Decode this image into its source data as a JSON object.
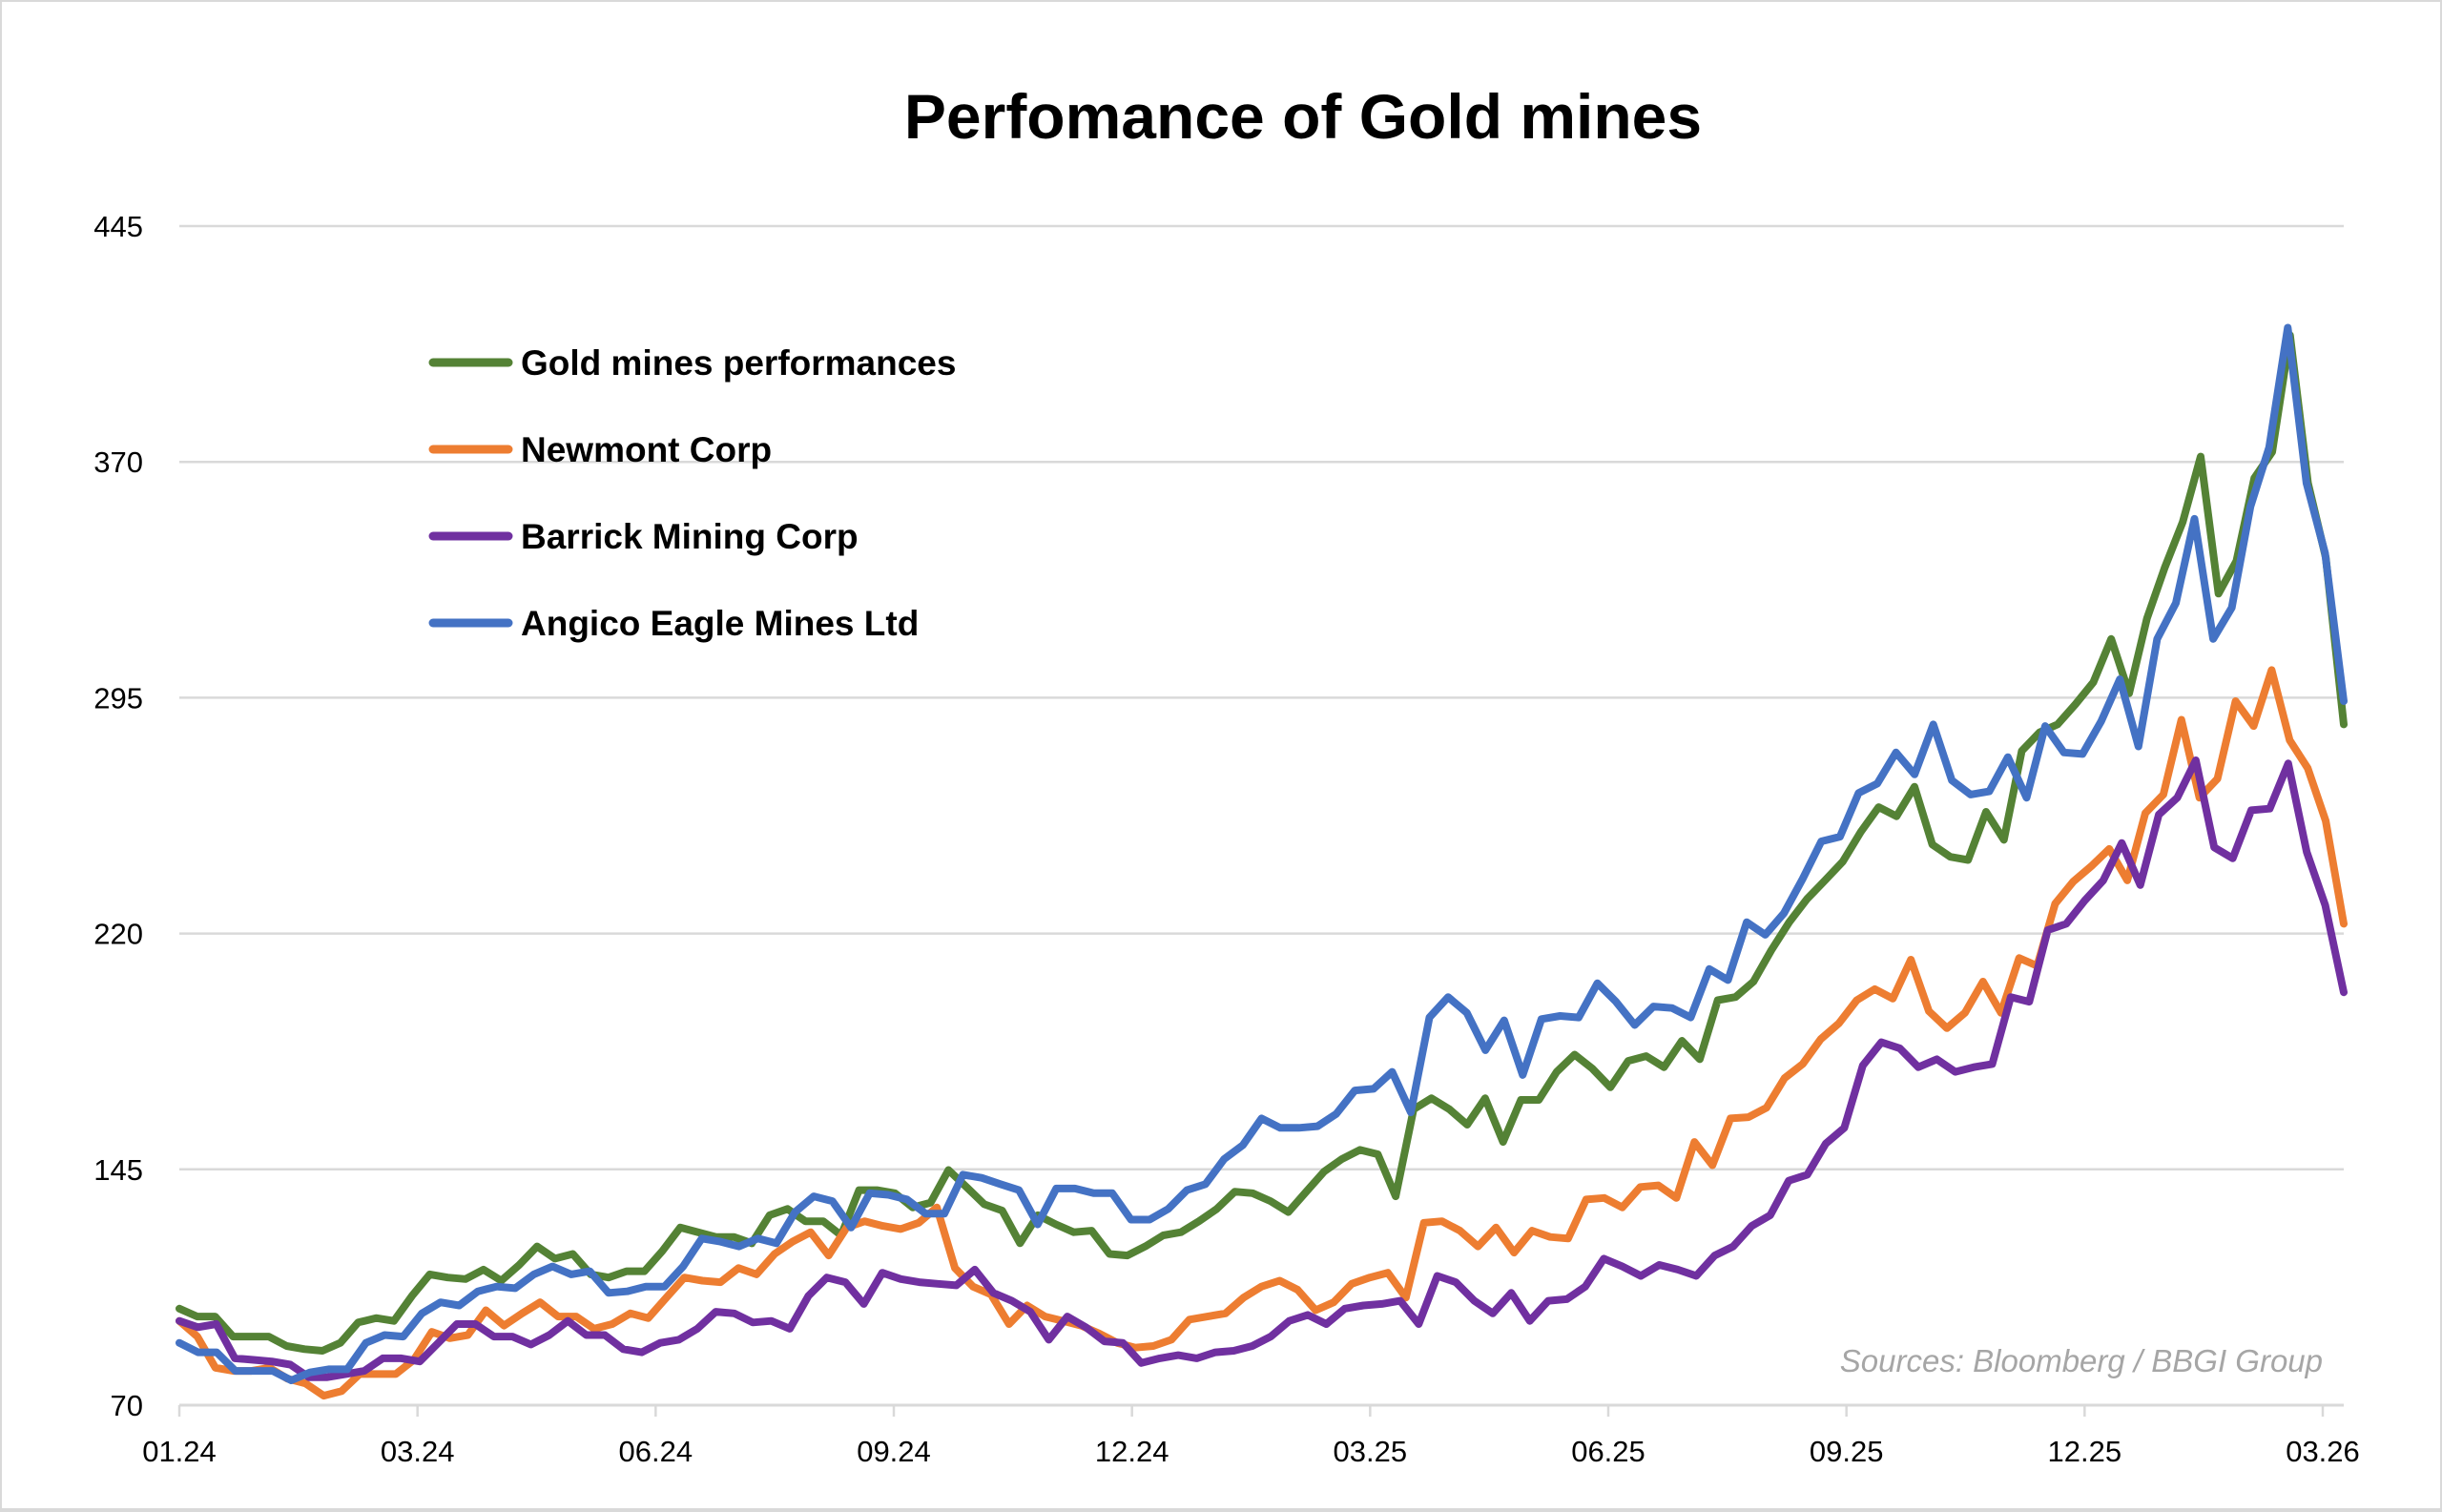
{
  "chart_data": {
    "type": "line",
    "title": "Perfomance of Gold mines",
    "xlabel": "",
    "ylabel": "",
    "ylim": [
      70,
      445
    ],
    "yticks": [
      "445",
      "370",
      "295",
      "220",
      "145",
      "70"
    ],
    "ytick_values": [
      445,
      370,
      295,
      220,
      145,
      70
    ],
    "xticks": [
      "01.24",
      "03.24",
      "06.24",
      "09.24",
      "12.24",
      "03.25",
      "06.25",
      "09.25",
      "12.25",
      "03.26"
    ],
    "grid": "horizontal",
    "legend_position": "top-left",
    "source": "Sources: Bloomberg / BBGI Group",
    "series": [
      {
        "name": "Gold mines performances",
        "color": "#548235",
        "values": [
          100.7,
          98.2,
          98.2,
          91.8,
          91.8,
          91.8,
          88.8,
          87.8,
          87.3,
          89.8,
          96.3,
          97.7,
          96.8,
          104.7,
          111.6,
          110.6,
          110.1,
          113.1,
          109.6,
          114.6,
          120.5,
          116.6,
          118.1,
          111.6,
          110.6,
          112.6,
          112.6,
          119.0,
          126.5,
          125.0,
          123.5,
          123.5,
          121.5,
          130.4,
          132.4,
          128.5,
          128.5,
          124.0,
          138.4,
          138.4,
          137.4,
          132.9,
          134.4,
          144.8,
          139.4,
          133.9,
          131.9,
          121.5,
          130.4,
          127.5,
          125.0,
          125.5,
          118.1,
          117.6,
          120.5,
          124.0,
          125.0,
          128.5,
          132.4,
          137.9,
          137.4,
          134.9,
          131.4,
          137.9,
          144.3,
          148.3,
          151.2,
          149.8,
          136.4,
          164.1,
          167.6,
          164.1,
          159.2,
          167.6,
          153.7,
          167.1,
          167.1,
          176.0,
          181.5,
          177.0,
          171.1,
          179.5,
          181.0,
          177.5,
          185.9,
          180.0,
          198.8,
          199.8,
          204.7,
          214.7,
          223.6,
          231.0,
          236.9,
          242.9,
          252.3,
          260.2,
          257.3,
          266.7,
          248.3,
          244.4,
          243.4,
          258.7,
          249.8,
          278.1,
          284.0,
          286.5,
          292.9,
          299.9,
          313.7,
          296.4,
          320.2,
          336.5,
          350.9,
          371.7,
          328.1,
          338.5,
          364.8,
          373.2,
          410.3,
          363.3,
          339.5,
          286.5
        ]
      },
      {
        "name": "Newmont Corp",
        "color": "#ED7D31",
        "values": [
          96.8,
          91.8,
          81.9,
          80.9,
          80.9,
          81.9,
          78.4,
          76.9,
          73.0,
          74.5,
          79.9,
          79.9,
          79.9,
          84.4,
          93.3,
          91.3,
          92.3,
          100.2,
          95.3,
          99.2,
          102.7,
          98.2,
          98.2,
          94.3,
          95.8,
          99.2,
          97.7,
          104.2,
          110.6,
          109.6,
          109.1,
          113.6,
          111.6,
          118.1,
          122.0,
          125.0,
          117.6,
          126.5,
          128.5,
          127.0,
          126.0,
          128.0,
          132.9,
          113.6,
          107.7,
          105.2,
          95.8,
          101.7,
          98.2,
          96.8,
          95.3,
          92.8,
          89.8,
          88.3,
          88.8,
          90.8,
          97.2,
          98.2,
          99.2,
          104.2,
          107.7,
          109.6,
          106.7,
          100.2,
          102.7,
          108.6,
          110.6,
          112.1,
          104.2,
          128.0,
          128.5,
          125.5,
          120.5,
          126.5,
          118.5,
          125.5,
          123.5,
          123.0,
          135.4,
          135.9,
          132.9,
          139.4,
          139.9,
          135.9,
          153.7,
          146.3,
          161.2,
          161.6,
          164.6,
          174.0,
          178.5,
          186.4,
          191.4,
          198.8,
          202.3,
          199.3,
          211.7,
          195.3,
          189.9,
          194.8,
          204.7,
          194.8,
          212.2,
          209.7,
          229.5,
          236.5,
          241.4,
          246.9,
          236.9,
          258.3,
          264.2,
          288.0,
          263.2,
          269.2,
          293.9,
          286.0,
          303.8,
          281.5,
          272.6,
          255.8,
          223.1
        ]
      },
      {
        "name": "Barrick Mining Corp",
        "color": "#7030A0",
        "values": [
          96.8,
          94.8,
          95.8,
          84.9,
          84.4,
          83.9,
          82.9,
          78.9,
          78.9,
          79.9,
          80.9,
          84.9,
          84.9,
          83.9,
          89.8,
          95.8,
          95.8,
          91.8,
          91.8,
          89.3,
          92.3,
          96.8,
          92.3,
          92.3,
          87.8,
          86.8,
          89.8,
          90.8,
          94.3,
          99.7,
          99.2,
          96.3,
          96.8,
          94.3,
          104.7,
          110.6,
          109.1,
          102.2,
          112.1,
          110.1,
          109.1,
          108.6,
          108.1,
          113.1,
          105.7,
          103.2,
          99.7,
          90.8,
          98.2,
          94.8,
          90.3,
          89.8,
          83.4,
          84.9,
          85.9,
          84.9,
          86.8,
          87.3,
          88.8,
          91.8,
          96.8,
          98.7,
          95.8,
          100.7,
          101.7,
          102.2,
          103.2,
          95.8,
          111.1,
          109.1,
          103.2,
          99.2,
          105.7,
          96.8,
          103.2,
          103.7,
          107.7,
          116.6,
          114.1,
          111.1,
          114.6,
          113.1,
          111.1,
          117.6,
          120.5,
          127.0,
          130.4,
          141.4,
          143.3,
          153.2,
          158.2,
          178.0,
          185.4,
          183.5,
          177.5,
          180.0,
          176.0,
          177.5,
          178.5,
          199.8,
          198.3,
          221.1,
          223.1,
          230.5,
          236.9,
          248.8,
          235.4,
          257.8,
          263.2,
          275.1,
          247.4,
          243.9,
          259.2,
          259.7,
          274.1,
          245.9,
          229.0,
          201.3
        ]
      },
      {
        "name": "Angico Eagle Mines Ltd",
        "color": "#4472C4",
        "values": [
          89.8,
          86.8,
          86.8,
          80.9,
          80.9,
          80.9,
          77.9,
          80.4,
          81.4,
          81.4,
          89.8,
          92.3,
          91.8,
          99.2,
          102.7,
          101.7,
          106.2,
          107.7,
          107.2,
          111.6,
          114.1,
          111.6,
          112.6,
          105.7,
          106.2,
          107.7,
          107.7,
          114.1,
          123.0,
          122.0,
          120.5,
          123.0,
          121.5,
          131.4,
          136.4,
          134.9,
          126.5,
          137.4,
          136.9,
          135.4,
          130.9,
          130.9,
          143.3,
          142.3,
          140.3,
          138.4,
          127.5,
          138.9,
          138.9,
          137.4,
          137.4,
          129.0,
          129.0,
          132.4,
          138.4,
          140.3,
          148.3,
          152.7,
          161.2,
          158.2,
          158.2,
          158.7,
          162.6,
          170.1,
          170.6,
          176.0,
          163.1,
          193.3,
          199.8,
          194.8,
          182.9,
          192.4,
          175.0,
          192.8,
          193.8,
          193.3,
          204.2,
          198.3,
          190.9,
          196.8,
          196.3,
          193.3,
          208.7,
          205.2,
          223.6,
          219.6,
          226.5,
          237.4,
          249.3,
          250.8,
          264.7,
          267.7,
          277.6,
          270.6,
          286.5,
          268.7,
          264.2,
          265.2,
          276.1,
          263.2,
          286.0,
          277.6,
          277.1,
          287.5,
          300.9,
          279.5,
          313.7,
          325.1,
          351.9,
          313.7,
          323.6,
          355.8,
          374.6,
          412.7,
          363.3,
          341.0,
          293.9
        ]
      }
    ]
  }
}
